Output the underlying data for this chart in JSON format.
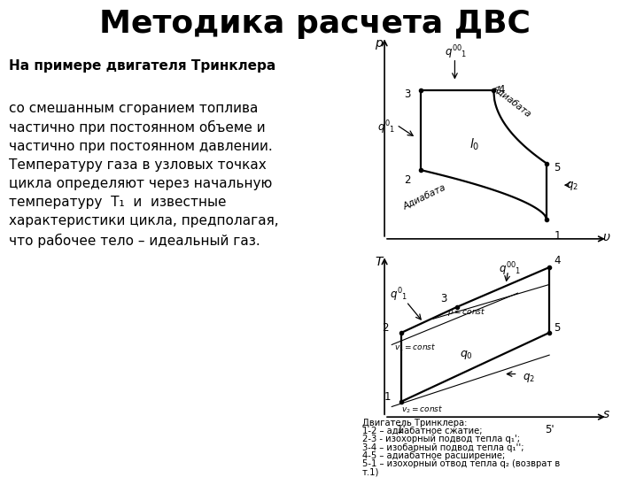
{
  "title": "Методика расчета ДВС",
  "title_fontsize": 26,
  "bold_text": "На примере двигателя Тринклера",
  "normal_text": "со смешанным сгоранием топлива\nчастично при постоянном объеме и\nчастично при постоянном давлении.\nТемпературу газа в узловых точках\nцикла определяют через начальную\nтемпературу  T₁  и  известные\nхарактеристики цикла, предполагая,\nчто рабочее тело – идеальный газ.",
  "legend_lines": [
    "Двигатель Тринклера:",
    "1-2 – адиабатное сжатие;",
    "2-3 - изохорный подвод тепла q₁';",
    "3-4 – изобарный подвод тепла q₁'';",
    "4-5 – адиабатное расширение;",
    "5-1 – изохорный отвод тепла q₂ (возврат в",
    "т.1)"
  ],
  "bg_color": "#ffffff",
  "text_color": "#000000"
}
